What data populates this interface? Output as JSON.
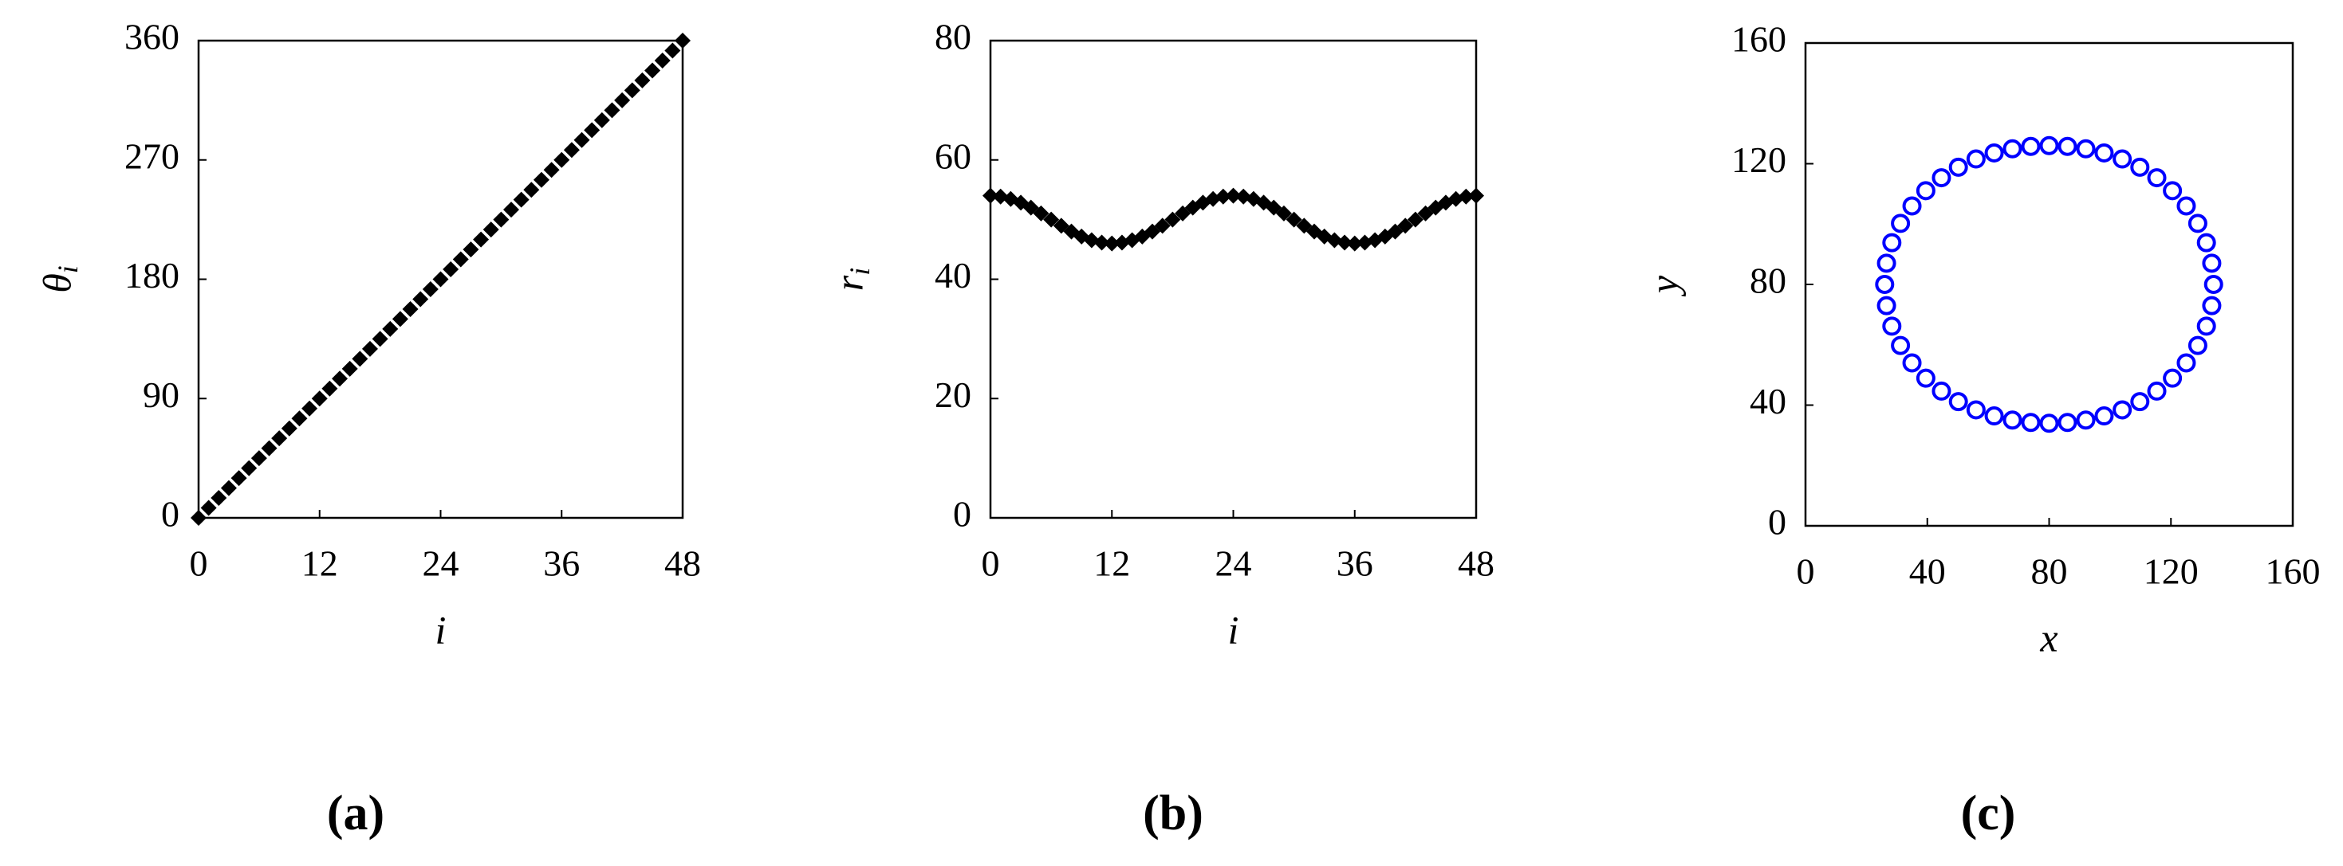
{
  "chart_data": [
    {
      "type": "scatter",
      "panel_label": "(a)",
      "x_label": "i",
      "y_label": "θ",
      "y_label_sub": "i",
      "marker": "diamond",
      "color": "#000000",
      "x": [
        0,
        1,
        2,
        3,
        4,
        5,
        6,
        7,
        8,
        9,
        10,
        11,
        12,
        13,
        14,
        15,
        16,
        17,
        18,
        19,
        20,
        21,
        22,
        23,
        24,
        25,
        26,
        27,
        28,
        29,
        30,
        31,
        32,
        33,
        34,
        35,
        36,
        37,
        38,
        39,
        40,
        41,
        42,
        43,
        44,
        45,
        46,
        47,
        48
      ],
      "values": [
        0,
        7.5,
        15,
        22.5,
        30,
        37.5,
        45,
        52.5,
        60,
        67.5,
        75,
        82.5,
        90,
        97.5,
        105,
        112.5,
        120,
        127.5,
        135,
        142.5,
        150,
        157.5,
        165,
        172.5,
        180,
        187.5,
        195,
        202.5,
        210,
        217.5,
        225,
        232.5,
        240,
        247.5,
        255,
        262.5,
        270,
        277.5,
        285,
        292.5,
        300,
        307.5,
        315,
        322.5,
        330,
        337.5,
        345,
        352.5,
        360
      ],
      "xlim": [
        0,
        48
      ],
      "xticks": [
        0,
        12,
        24,
        36,
        48
      ],
      "ylim": [
        0,
        360
      ],
      "yticks": [
        0,
        90,
        180,
        270,
        360
      ]
    },
    {
      "type": "scatter",
      "panel_label": "(b)",
      "x_label": "i",
      "y_label": "r",
      "y_label_sub": "i",
      "marker": "diamond",
      "color": "#000000",
      "x": [
        0,
        1,
        2,
        3,
        4,
        5,
        6,
        7,
        8,
        9,
        10,
        11,
        12,
        13,
        14,
        15,
        16,
        17,
        18,
        19,
        20,
        21,
        22,
        23,
        24,
        25,
        26,
        27,
        28,
        29,
        30,
        31,
        32,
        33,
        34,
        35,
        36,
        37,
        38,
        39,
        40,
        41,
        42,
        43,
        44,
        45,
        46,
        47,
        48
      ],
      "values": [
        54,
        53.86,
        53.46,
        52.83,
        52,
        51.04,
        50,
        48.96,
        48,
        47.17,
        46.54,
        46.14,
        46,
        46.14,
        46.54,
        47.17,
        48,
        48.96,
        50,
        51.04,
        52,
        52.83,
        53.46,
        53.86,
        54,
        53.86,
        53.46,
        52.83,
        52,
        51.04,
        50,
        48.96,
        48,
        47.17,
        46.54,
        46.14,
        46,
        46.14,
        46.54,
        47.17,
        48,
        48.96,
        50,
        51.04,
        52,
        52.83,
        53.46,
        53.86,
        54
      ],
      "xlim": [
        0,
        48
      ],
      "xticks": [
        0,
        12,
        24,
        36,
        48
      ],
      "ylim": [
        0,
        80
      ],
      "yticks": [
        0,
        20,
        40,
        60,
        80
      ]
    },
    {
      "type": "scatter",
      "panel_label": "(c)",
      "x_label": "x",
      "y_label": "y",
      "marker": "circle",
      "color": "#0000ff",
      "x": [
        134,
        133.4,
        131.64,
        128.81,
        125.03,
        120.49,
        115.36,
        109.8,
        104,
        98.05,
        92.05,
        86.02,
        80,
        73.98,
        67.95,
        61.95,
        56,
        50.2,
        44.64,
        39.51,
        34.97,
        31.19,
        28.36,
        26.6,
        26,
        26.6,
        28.36,
        31.19,
        34.97,
        39.51,
        44.64,
        50.2,
        56,
        61.95,
        67.95,
        73.98,
        80,
        86.02,
        92.05,
        98.05,
        104,
        109.8,
        115.36,
        120.49,
        125.03,
        128.81,
        131.64,
        133.4
      ],
      "values": [
        80,
        87.03,
        93.84,
        100.22,
        106,
        111.07,
        115.36,
        118.84,
        121.57,
        123.58,
        124.95,
        125.75,
        126,
        125.75,
        124.95,
        123.58,
        121.57,
        118.84,
        115.36,
        111.07,
        106,
        100.22,
        93.84,
        87.03,
        80,
        72.97,
        66.16,
        59.78,
        54,
        48.93,
        44.64,
        41.16,
        38.43,
        36.42,
        35.05,
        34.25,
        34,
        34.25,
        35.05,
        36.42,
        38.43,
        41.16,
        44.64,
        48.93,
        54,
        59.78,
        66.16,
        72.97
      ],
      "xlim": [
        0,
        160
      ],
      "xticks": [
        0,
        40,
        80,
        120,
        160
      ],
      "ylim": [
        0,
        160
      ],
      "yticks": [
        0,
        40,
        80,
        120,
        160
      ]
    }
  ]
}
